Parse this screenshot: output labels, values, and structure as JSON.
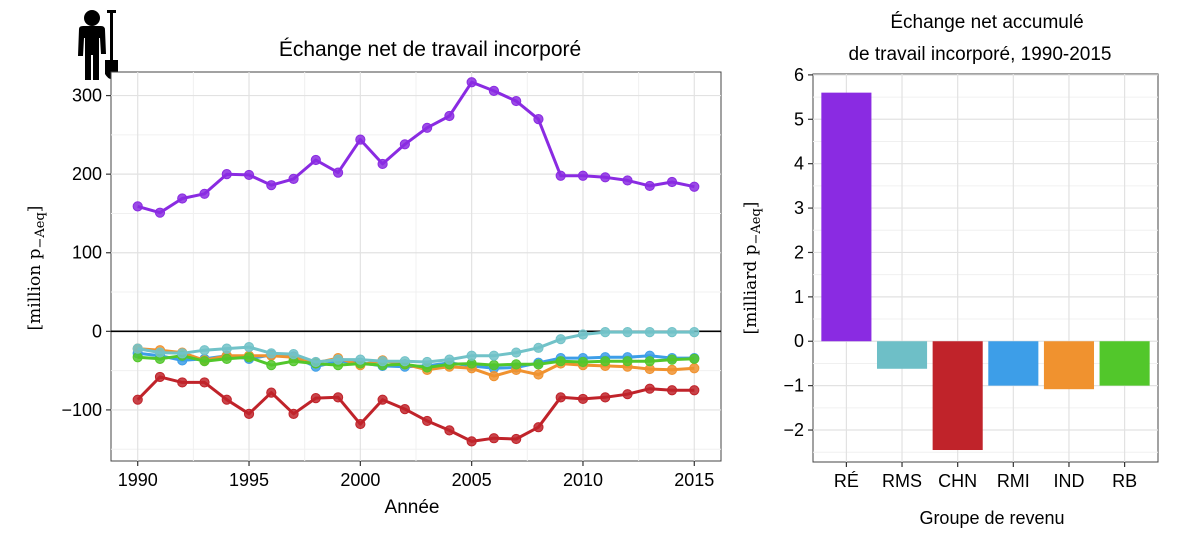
{
  "chart_data": [
    {
      "type": "line",
      "title": "Échange net de travail incorporé",
      "xlabel": "Année",
      "ylabel": "[million p-A_eq]",
      "ylabel_main": "[million  p",
      "ylabel_sub": "−Aeq",
      "ylabel_close": "]",
      "xlim": [
        1988.8,
        2016.2
      ],
      "ylim": [
        -165,
        330
      ],
      "xticks": [
        1990,
        1995,
        2000,
        2005,
        2010,
        2015
      ],
      "yticks": [
        -100,
        0,
        100,
        200,
        300
      ],
      "ytick_labels": [
        "−100",
        "0",
        "100",
        "200",
        "300"
      ],
      "grid": true,
      "zero_line": true,
      "x": [
        1990,
        1991,
        1992,
        1993,
        1994,
        1995,
        1996,
        1997,
        1998,
        1999,
        2000,
        2001,
        2002,
        2003,
        2004,
        2005,
        2006,
        2007,
        2008,
        2009,
        2010,
        2011,
        2012,
        2013,
        2014,
        2015
      ],
      "series": [
        {
          "color": "#8a2be2",
          "values": [
            159,
            151,
            169,
            175,
            200,
            199,
            186,
            194,
            218,
            202,
            244,
            213,
            238,
            259,
            274,
            317,
            306,
            293,
            270,
            198,
            198,
            196,
            192,
            185,
            190,
            184
          ]
        },
        {
          "color": "#3d9ee8",
          "values": [
            -28,
            -31,
            -37,
            -35,
            -31,
            -35,
            -30,
            -32,
            -45,
            -38,
            -40,
            -44,
            -45,
            -44,
            -40,
            -44,
            -47,
            -46,
            -40,
            -34,
            -34,
            -33,
            -33,
            -31,
            -34,
            -34
          ]
        },
        {
          "color": "#f0922f",
          "values": [
            -22,
            -24,
            -27,
            -37,
            -31,
            -31,
            -31,
            -33,
            -40,
            -34,
            -43,
            -37,
            -42,
            -49,
            -45,
            -47,
            -57,
            -49,
            -55,
            -41,
            -43,
            -44,
            -45,
            -48,
            -49,
            -47
          ]
        },
        {
          "color": "#52c72b",
          "values": [
            -33,
            -35,
            -31,
            -38,
            -35,
            -33,
            -43,
            -38,
            -41,
            -43,
            -41,
            -43,
            -42,
            -46,
            -42,
            -41,
            -43,
            -42,
            -42,
            -38,
            -39,
            -38,
            -38,
            -38,
            -36,
            -35
          ]
        },
        {
          "color": "#71c2c8",
          "values": [
            -22,
            -27,
            -28,
            -24,
            -22,
            -20,
            -28,
            -29,
            -39,
            -36,
            -36,
            -38,
            -38,
            -39,
            -36,
            -31,
            -31,
            -27,
            -21,
            -10,
            -4,
            -1,
            -1,
            -1,
            -1,
            -1
          ]
        },
        {
          "color": "#c0232a",
          "values": [
            -87,
            -58,
            -65,
            -65,
            -87,
            -105,
            -78,
            -105,
            -85,
            -84,
            -118,
            -87,
            -99,
            -114,
            -126,
            -140,
            -136,
            -137,
            -122,
            -84,
            -86,
            -84,
            -80,
            -73,
            -75,
            -75
          ]
        }
      ]
    },
    {
      "type": "bar",
      "title": "Échange net accumulé",
      "subtitle": "de travail incorporé, 1990-2015",
      "xlabel": "Groupe de revenu",
      "ylabel": "[milliard p-A_eq]",
      "ylabel_main": "[milliard  p",
      "ylabel_sub": "−Aeq",
      "ylabel_close": "]",
      "ylim": [
        -2.72,
        6.02
      ],
      "yticks": [
        -2,
        -1,
        0,
        1,
        2,
        3,
        4,
        5,
        6
      ],
      "ytick_labels": [
        "−2",
        "−1",
        "0",
        "1",
        "2",
        "3",
        "4",
        "5",
        "6"
      ],
      "grid": true,
      "categories": [
        "RÉ",
        "RMS",
        "CHN",
        "RMI",
        "IND",
        "RB"
      ],
      "values": [
        5.6,
        -0.62,
        -2.45,
        -1.0,
        -1.08,
        -1.0
      ],
      "colors": [
        "#8a2be2",
        "#6ebfc7",
        "#c0232a",
        "#3d9ee8",
        "#f0922f",
        "#52c72b"
      ]
    }
  ],
  "icon": "worker-with-shovel-icon"
}
